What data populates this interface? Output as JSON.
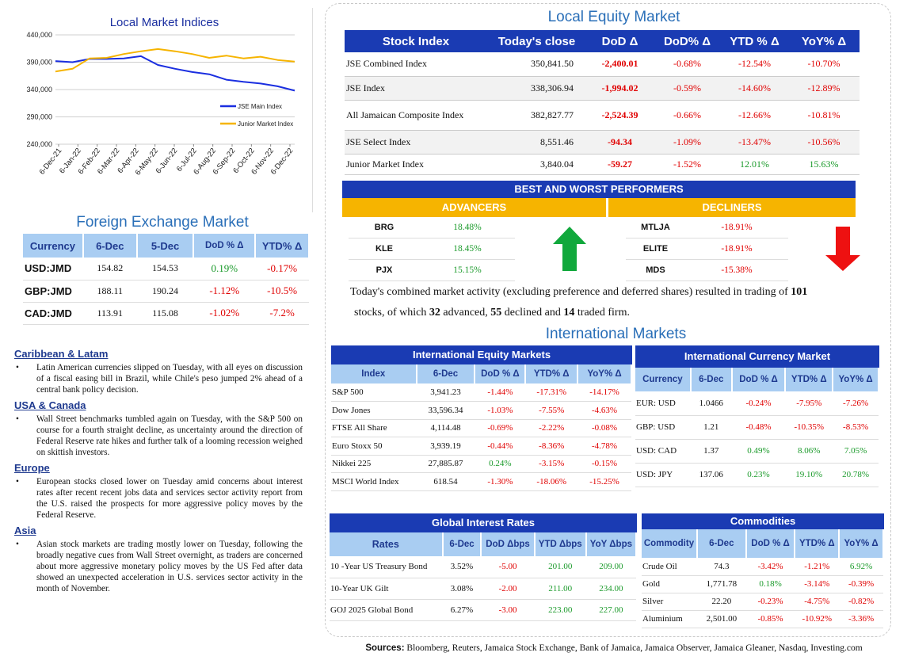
{
  "chart": {
    "title": "Local Market Indices",
    "legend": [
      {
        "name": "JSE Main Index",
        "color": "#1a2ee0"
      },
      {
        "name": "Junior Market Index",
        "color": "#f6b400"
      }
    ]
  },
  "chart_data": {
    "type": "line",
    "title": "Local Market Indices",
    "ylim": [
      240000,
      440000
    ],
    "y_ticks": [
      "440,000",
      "390,000",
      "340,000",
      "290,000",
      "240,000"
    ],
    "x_ticks": [
      "6-Dec-21",
      "6-Jan-22",
      "6-Feb-22",
      "6-Mar-22",
      "6-Apr-22",
      "6-May-22",
      "6-Jun-22",
      "6-Jul-22",
      "6-Aug-22",
      "6-Sep-22",
      "6-Oct-22",
      "6-Nov-22",
      "6-Dec-22"
    ],
    "grid": true,
    "legend_position": "right",
    "series": [
      {
        "name": "JSE Main Index",
        "values": [
          392000,
          390000,
          396000,
          396000,
          397000,
          401000,
          385000,
          378000,
          372000,
          368000,
          358000,
          354000,
          351000,
          346000,
          338000
        ]
      },
      {
        "name": "Junior Market Index",
        "values": [
          373000,
          378000,
          397000,
          398000,
          405000,
          410000,
          414000,
          410000,
          405000,
          398000,
          402000,
          397000,
          400000,
          394000,
          391000
        ]
      }
    ]
  },
  "fx": {
    "title": "Foreign Exchange Market",
    "headers": [
      "Currency",
      "6-Dec",
      "5-Dec",
      "DoD % Δ",
      "YTD% Δ"
    ],
    "rows": [
      {
        "cur": "USD:JMD",
        "d1": "154.82",
        "d2": "154.53",
        "dod": "0.19%",
        "ytd": "-0.17%"
      },
      {
        "cur": "GBP:JMD",
        "d1": "188.11",
        "d2": "190.24",
        "dod": "-1.12%",
        "ytd": "-10.5%"
      },
      {
        "cur": "CAD:JMD",
        "d1": "113.91",
        "d2": "115.08",
        "dod": "-1.02%",
        "ytd": "-7.2%"
      }
    ]
  },
  "news": [
    {
      "heading": "Caribbean & Latam",
      "text": "Latin American currencies slipped on Tuesday, with all eyes on discussion of a fiscal easing bill in Brazil, while Chile's peso jumped 2% ahead of a central bank policy decision."
    },
    {
      "heading": "USA & Canada",
      "text": "Wall Street benchmarks tumbled again on Tuesday, with the S&P 500 on course for a fourth straight decline, as uncertainty around the direction of Federal Reserve rate hikes and further talk of a looming recession weighed on skittish investors."
    },
    {
      "heading": "Europe",
      "text": "European stocks closed lower on Tuesday amid concerns about interest rates after recent recent jobs data and services sector activity report from the U.S. raised the prospects for more aggressive policy moves by the Federal Reserve."
    },
    {
      "heading": "Asia",
      "text": "Asian stock markets are trading mostly lower on Tuesday, following the broadly negative cues from Wall Street overnight, as traders are concerned about more aggressive monetary policy moves by the US Fed after data showed an unexpected acceleration in U.S. services sector activity in the month of November."
    }
  ],
  "equity": {
    "title": "Local Equity Market",
    "headers": [
      "Stock Index",
      "Today's close",
      "DoD  Δ",
      "DoD% Δ",
      "YTD % Δ",
      "YoY% Δ"
    ],
    "rows": [
      {
        "name": "JSE Combined Index",
        "close": "350,841.50",
        "dod": "-2,400.01",
        "dodp": "-0.68%",
        "ytd": "-12.54%",
        "yoy": "-10.70%"
      },
      {
        "name": "JSE Index",
        "close": "338,306.94",
        "dod": "-1,994.02",
        "dodp": "-0.59%",
        "ytd": "-14.60%",
        "yoy": "-12.89%"
      },
      {
        "name": "All Jamaican Composite Index",
        "close": "382,827.77",
        "dod": "-2,524.39",
        "dodp": "-0.66%",
        "ytd": "-12.66%",
        "yoy": "-10.81%"
      },
      {
        "name": "JSE Select Index",
        "close": "8,551.46",
        "dod": "-94.34",
        "dodp": "-1.09%",
        "ytd": "-13.47%",
        "yoy": "-10.56%"
      },
      {
        "name": "Junior Market Index",
        "close": "3,840.04",
        "dod": "-59.27",
        "dodp": "-1.52%",
        "ytd": "12.01%",
        "yoy": "15.63%"
      }
    ]
  },
  "performers": {
    "title": "BEST AND WORST PERFORMERS",
    "advancers_label": "ADVANCERS",
    "decliners_label": "DECLINERS",
    "advancers": [
      {
        "sym": "BRG",
        "pct": "18.48%"
      },
      {
        "sym": "KLE",
        "pct": "18.45%"
      },
      {
        "sym": "PJX",
        "pct": "15.15%"
      }
    ],
    "decliners": [
      {
        "sym": "MTLJA",
        "pct": "-18.91%"
      },
      {
        "sym": "ELITE",
        "pct": "-18.91%"
      },
      {
        "sym": "MDS",
        "pct": "-15.38%"
      }
    ]
  },
  "summary": {
    "p1": "Today's combined market activity (excluding preference and deferred shares) resulted in trading of ",
    "traded": "101",
    "p2": "stocks, of which ",
    "advanced": "32",
    "p3": " advanced, ",
    "declined": "55",
    "p4": " declined and ",
    "firm": "14",
    "p5": " traded firm."
  },
  "intl": {
    "title": "International Markets",
    "equity": {
      "title": "International Equity Markets",
      "headers": [
        "Index",
        "6-Dec",
        "DoD % Δ",
        "YTD% Δ",
        "YoY% Δ"
      ],
      "rows": [
        {
          "name": "S&P 500",
          "v": "3,941.23",
          "dod": "-1.44%",
          "ytd": "-17.31%",
          "yoy": "-14.17%"
        },
        {
          "name": "Dow Jones",
          "v": "33,596.34",
          "dod": "-1.03%",
          "ytd": "-7.55%",
          "yoy": "-4.63%"
        },
        {
          "name": "FTSE All Share",
          "v": "4,114.48",
          "dod": "-0.69%",
          "ytd": "-2.22%",
          "yoy": "-0.08%"
        },
        {
          "name": "Euro Stoxx 50",
          "v": "3,939.19",
          "dod": "-0.44%",
          "ytd": "-8.36%",
          "yoy": "-4.78%"
        },
        {
          "name": "Nikkei 225",
          "v": "27,885.87",
          "dod": "0.24%",
          "ytd": "-3.15%",
          "yoy": "-0.15%"
        },
        {
          "name": "MSCI World Index",
          "v": "618.54",
          "dod": "-1.30%",
          "ytd": "-18.06%",
          "yoy": "-15.25%"
        }
      ]
    },
    "currency": {
      "title": "International Currency Market",
      "headers": [
        "Currency",
        "6-Dec",
        "DoD % Δ",
        "YTD% Δ",
        "YoY% Δ"
      ],
      "rows": [
        {
          "name": "EUR: USD",
          "v": "1.0466",
          "dod": "-0.24%",
          "ytd": "-7.95%",
          "yoy": "-7.26%"
        },
        {
          "name": "GBP: USD",
          "v": "1.21",
          "dod": "-0.48%",
          "ytd": "-10.35%",
          "yoy": "-8.53%"
        },
        {
          "name": "USD: CAD",
          "v": "1.37",
          "dod": "0.49%",
          "ytd": "8.06%",
          "yoy": "7.05%"
        },
        {
          "name": "USD: JPY",
          "v": "137.06",
          "dod": "0.23%",
          "ytd": "19.10%",
          "yoy": "20.78%"
        }
      ]
    },
    "rates": {
      "title": "Global Interest Rates",
      "headers": [
        "Rates",
        "6-Dec",
        "DoD Δbps",
        "YTD Δbps",
        "YoY Δbps"
      ],
      "rows": [
        {
          "name": "10 -Year US Treasury Bond",
          "v": "3.52%",
          "dod": "-5.00",
          "ytd": "201.00",
          "yoy": "209.00"
        },
        {
          "name": "10-Year UK Gilt",
          "v": "3.08%",
          "dod": "-2.00",
          "ytd": "211.00",
          "yoy": "234.00"
        },
        {
          "name": "GOJ 2025 Global Bond",
          "v": "6.27%",
          "dod": "-3.00",
          "ytd": "223.00",
          "yoy": "227.00"
        }
      ]
    },
    "commodities": {
      "title": "Commodities",
      "headers": [
        "Commodity",
        "6-Dec",
        "DoD % Δ",
        "YTD% Δ",
        "YoY% Δ"
      ],
      "rows": [
        {
          "name": "Crude Oil",
          "v": "74.3",
          "dod": "-3.42%",
          "ytd": "-1.21%",
          "yoy": "6.92%"
        },
        {
          "name": "Gold",
          "v": "1,771.78",
          "dod": "0.18%",
          "ytd": "-3.14%",
          "yoy": "-0.39%"
        },
        {
          "name": "Silver",
          "v": "22.20",
          "dod": "-0.23%",
          "ytd": "-4.75%",
          "yoy": "-0.82%"
        },
        {
          "name": "Aluminium",
          "v": "2,501.00",
          "dod": "-0.85%",
          "ytd": "-10.92%",
          "yoy": "-3.36%"
        }
      ]
    }
  },
  "sources": {
    "label": "Sources:",
    "text": " Bloomberg, Reuters, Jamaica Stock Exchange, Bank of Jamaica, Jamaica Observer, Jamaica Gleaner, Nasdaq, Investing.com"
  }
}
